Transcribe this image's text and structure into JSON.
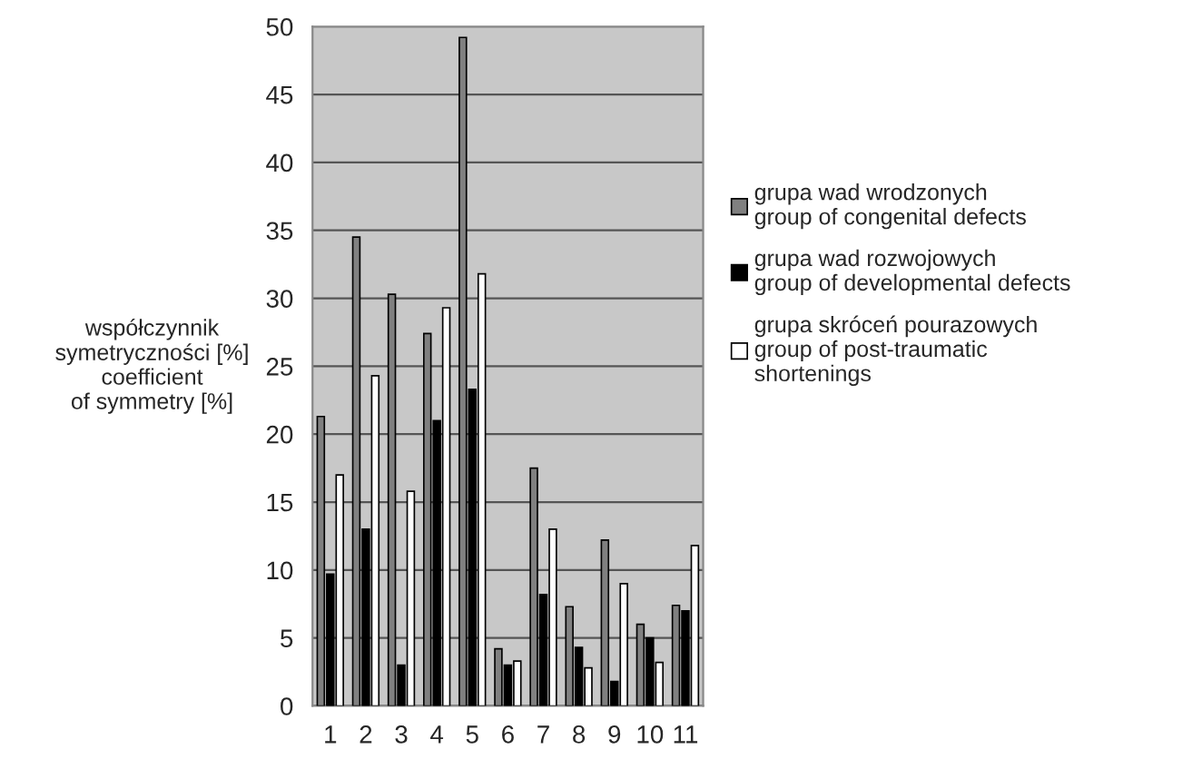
{
  "chart_data": {
    "type": "bar",
    "ylabel": "współczynnik\nsymetryczności [%]\ncoefficient\nof symmetry [%]",
    "categories": [
      "1",
      "2",
      "3",
      "4",
      "5",
      "6",
      "7",
      "8",
      "9",
      "10",
      "11"
    ],
    "series": [
      {
        "name": "grupa wad wrodzonych\ngroup of congenital defects",
        "color": "#808080",
        "values": [
          21.3,
          34.5,
          30.3,
          27.4,
          49.2,
          4.2,
          17.5,
          7.3,
          12.2,
          6,
          7.4
        ]
      },
      {
        "name": "grupa wad rozwojowych\ngroup of developmental defects",
        "color": "#000000",
        "values": [
          9.7,
          13,
          3,
          21,
          23.3,
          3,
          8.2,
          4.3,
          1.8,
          5,
          7
        ]
      },
      {
        "name": "grupa skróceń pourazowych\ngroup of post-traumatic\nshortenings",
        "color": "#ffffff",
        "values": [
          17,
          24.3,
          15.8,
          29.3,
          31.8,
          3.3,
          13,
          2.8,
          9,
          3.2,
          11.8
        ]
      }
    ],
    "ylim": [
      0,
      50
    ],
    "yticks": [
      0,
      5,
      10,
      15,
      20,
      25,
      30,
      35,
      40,
      45,
      50
    ],
    "grid": "y",
    "legend": "right"
  }
}
